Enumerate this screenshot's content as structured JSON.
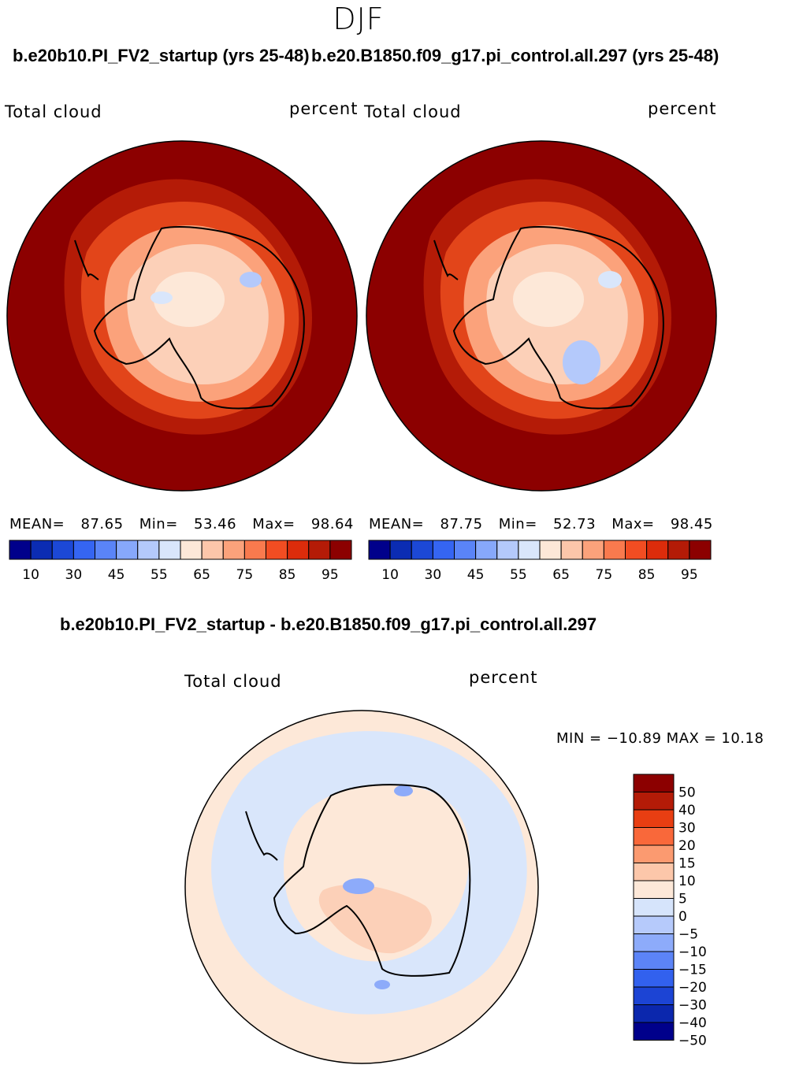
{
  "season": "DJF",
  "panels": [
    {
      "title": "b.e20b10.PI_FV2_startup (yrs 25-48)",
      "left_label": "Total cloud",
      "right_label": "percent",
      "stats": {
        "mean_label": "MEAN=",
        "mean": "87.65",
        "min_label": "Min=",
        "min": "53.46",
        "max_label": "Max=",
        "max": "98.64"
      }
    },
    {
      "title": "b.e20.B1850.f09_g17.pi_control.all.297 (yrs 25-48)",
      "left_label": "Total cloud",
      "right_label": "percent",
      "stats": {
        "mean_label": "MEAN=",
        "mean": "87.75",
        "min_label": "Min=",
        "min": "52.73",
        "max_label": "Max=",
        "max": "98.45"
      }
    }
  ],
  "abs_colorbar": {
    "colors": [
      "#00008b",
      "#0b2cb3",
      "#1c48d6",
      "#3565f2",
      "#5a84f8",
      "#87a8fb",
      "#b4c9fb",
      "#d9e6fb",
      "#fde8d8",
      "#fcc6aa",
      "#fba27b",
      "#f97a4e",
      "#f24d22",
      "#dc2c0b",
      "#b41b07",
      "#8c0000"
    ],
    "tick_labels": [
      "10",
      "30",
      "45",
      "55",
      "65",
      "75",
      "85",
      "95"
    ]
  },
  "diff": {
    "title": "b.e20b10.PI_FV2_startup - b.e20.B1850.f09_g17.pi_control.all.297",
    "left_label": "Total cloud",
    "right_label": "percent",
    "minmax_text": "MIN = −10.89 MAX =   10.18",
    "colorbar": {
      "colors": [
        "#8c0000",
        "#b41b07",
        "#e83e12",
        "#f9683a",
        "#fb9a70",
        "#fcc7aa",
        "#fde8d8",
        "#d6e4fb",
        "#b6cafb",
        "#8dabfa",
        "#5c84f7",
        "#3261ee",
        "#1c44d4",
        "#0b27ad",
        "#00008b"
      ],
      "tick_labels": [
        "50",
        "40",
        "30",
        "20",
        "15",
        "10",
        "5",
        "0",
        "−5",
        "−10",
        "−15",
        "−20",
        "−30",
        "−40",
        "−50"
      ]
    }
  },
  "chart_data": [
    {
      "type": "heatmap",
      "projection": "south polar stereographic",
      "title": "b.e20b10.PI_FV2_startup (yrs 25-48)",
      "variable": "Total cloud",
      "units": "percent",
      "season": "DJF",
      "mean": 87.65,
      "min": 53.46,
      "max": 98.64,
      "contour_levels": [
        10,
        20,
        30,
        40,
        45,
        50,
        55,
        60,
        65,
        70,
        75,
        80,
        85,
        90,
        95
      ]
    },
    {
      "type": "heatmap",
      "projection": "south polar stereographic",
      "title": "b.e20.B1850.f09_g17.pi_control.all.297 (yrs 25-48)",
      "variable": "Total cloud",
      "units": "percent",
      "season": "DJF",
      "mean": 87.75,
      "min": 52.73,
      "max": 98.45,
      "contour_levels": [
        10,
        20,
        30,
        40,
        45,
        50,
        55,
        60,
        65,
        70,
        75,
        80,
        85,
        90,
        95
      ]
    },
    {
      "type": "heatmap",
      "projection": "south polar stereographic",
      "title": "b.e20b10.PI_FV2_startup - b.e20.B1850.f09_g17.pi_control.all.297",
      "variable": "Total cloud",
      "units": "percent",
      "season": "DJF",
      "min": -10.89,
      "max": 10.18,
      "contour_levels": [
        -50,
        -40,
        -30,
        -20,
        -15,
        -10,
        -5,
        0,
        5,
        10,
        15,
        20,
        30,
        40,
        50
      ]
    }
  ]
}
